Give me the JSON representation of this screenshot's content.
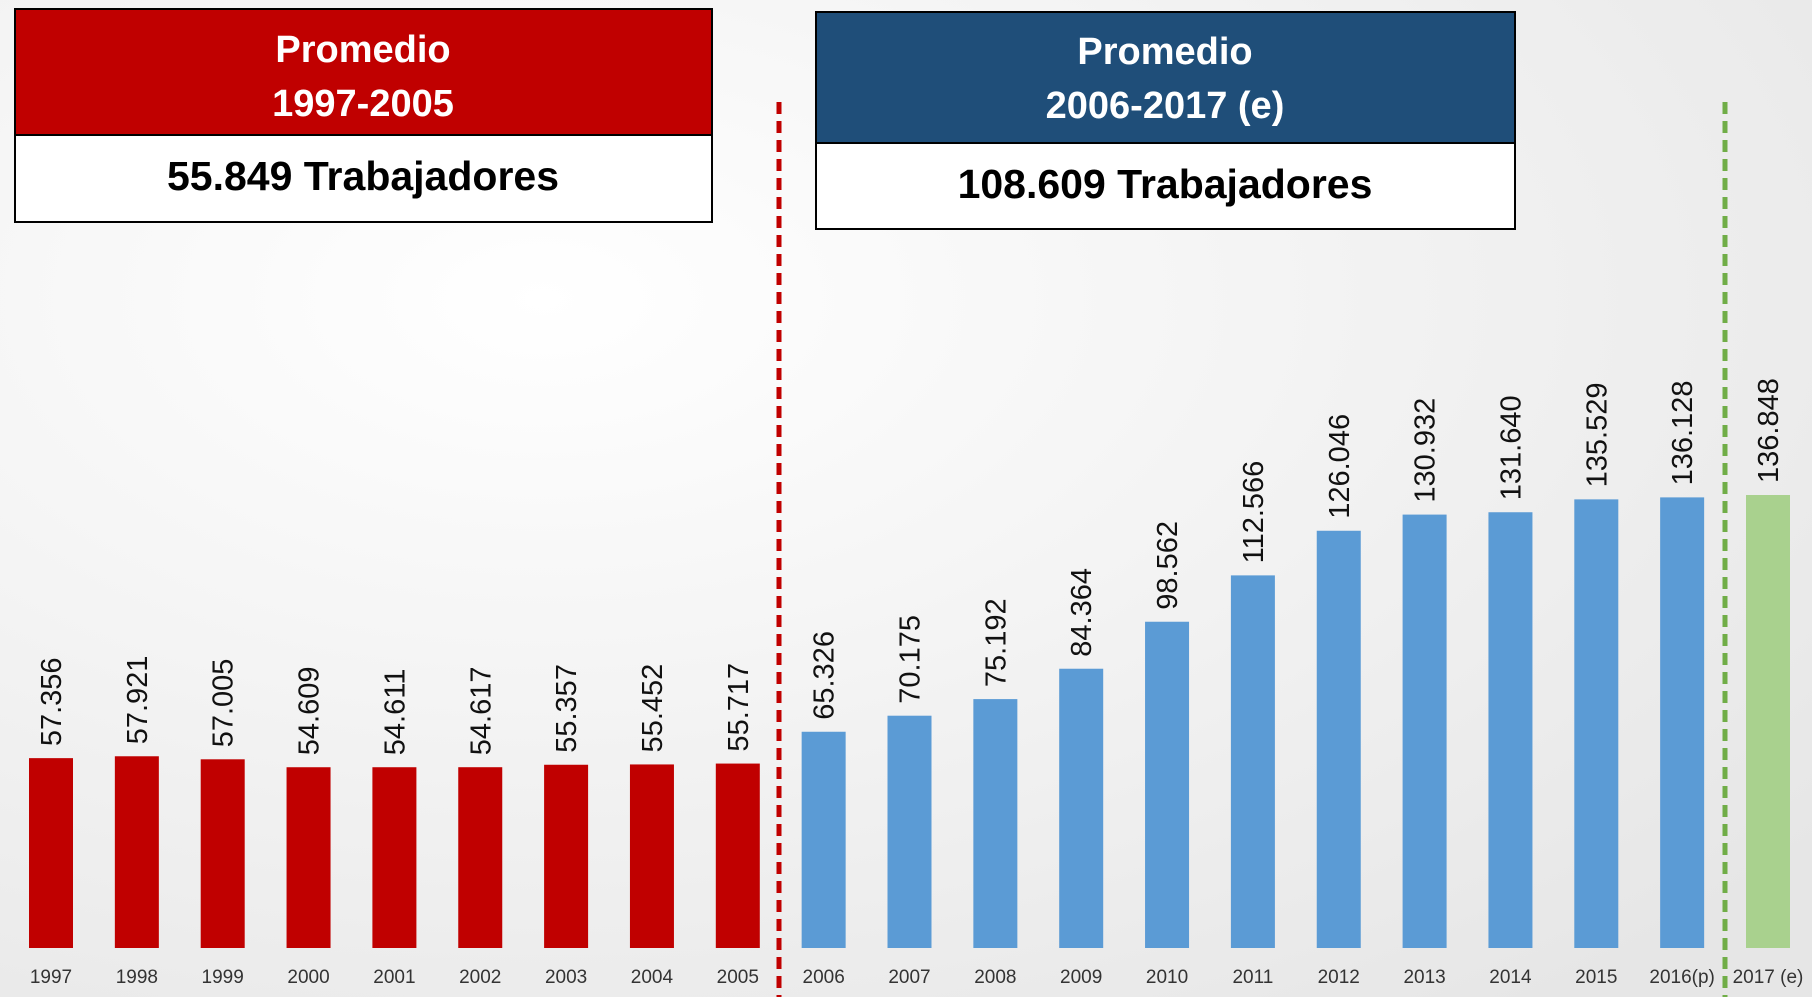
{
  "chart_data": {
    "type": "bar",
    "categories": [
      "1997",
      "1998",
      "1999",
      "2000",
      "2001",
      "2002",
      "2003",
      "2004",
      "2005",
      "2006",
      "2007",
      "2008",
      "2009",
      "2010",
      "2011",
      "2012",
      "2013",
      "2014",
      "2015",
      "2016(p)",
      "2017 (e)"
    ],
    "values": [
      57356,
      57921,
      57005,
      54609,
      54611,
      54617,
      55357,
      55452,
      55717,
      65326,
      70175,
      75192,
      84364,
      98562,
      112566,
      126046,
      130932,
      131640,
      135529,
      136128,
      136848
    ],
    "value_labels": [
      "57.356",
      "57.921",
      "57.005",
      "54.609",
      "54.611",
      "54.617",
      "55.357",
      "55.452",
      "55.717",
      "65.326",
      "70.175",
      "75.192",
      "84.364",
      "98.562",
      "112.566",
      "126.046",
      "130.932",
      "131.640",
      "135.529",
      "136.128",
      "136.848"
    ],
    "colors": [
      "#c00000",
      "#c00000",
      "#c00000",
      "#c00000",
      "#c00000",
      "#c00000",
      "#c00000",
      "#c00000",
      "#c00000",
      "#5b9bd5",
      "#5b9bd5",
      "#5b9bd5",
      "#5b9bd5",
      "#5b9bd5",
      "#5b9bd5",
      "#5b9bd5",
      "#5b9bd5",
      "#5b9bd5",
      "#5b9bd5",
      "#5b9bd5",
      "#a9d18e"
    ],
    "annotations": [
      {
        "title": [
          "Promedio",
          "1997-2005"
        ],
        "text": "55.849 Trabajadores",
        "color": "#c00000"
      },
      {
        "title": [
          "Promedio",
          "2006-2017  (e)"
        ],
        "text": "108.609 Trabajadores",
        "color": "#1f4e79"
      }
    ]
  }
}
